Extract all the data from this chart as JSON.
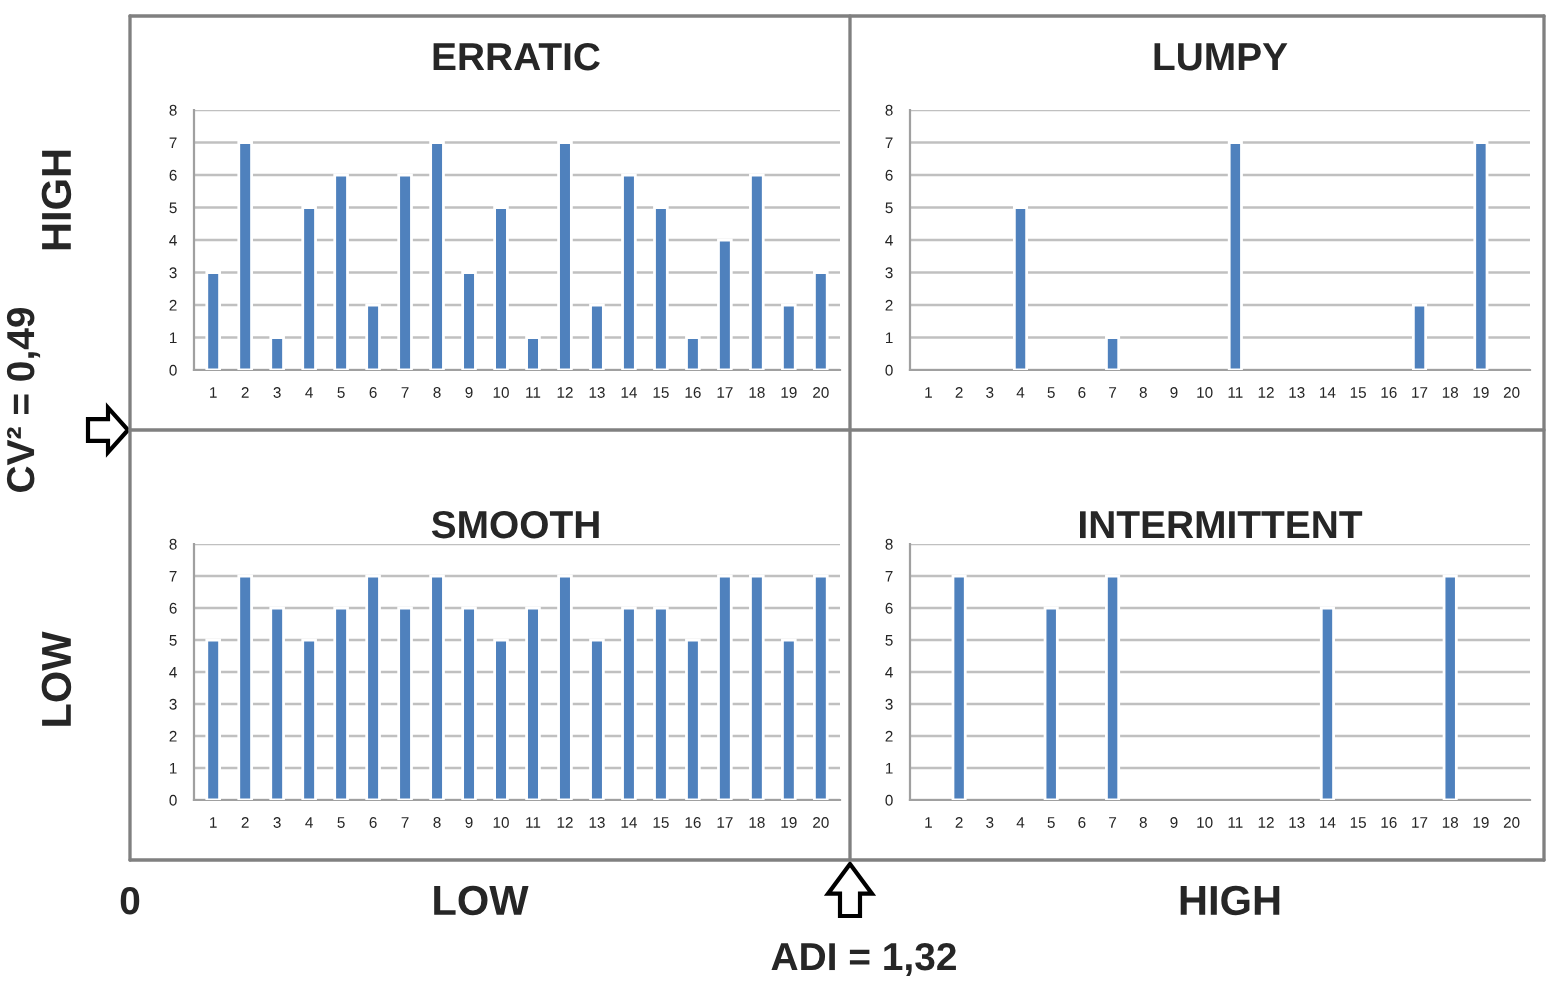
{
  "chart_data": [
    {
      "type": "bar",
      "title": "ERRATIC",
      "categories": [
        "1",
        "2",
        "3",
        "4",
        "5",
        "6",
        "7",
        "8",
        "9",
        "10",
        "11",
        "12",
        "13",
        "14",
        "15",
        "16",
        "17",
        "18",
        "19",
        "20"
      ],
      "color": "#4f81bd",
      "values": [
        3,
        7,
        1,
        5,
        6,
        2,
        6,
        7,
        3,
        5,
        1,
        7,
        2,
        6,
        5,
        1,
        4,
        6,
        2,
        3
      ],
      "ylim": [
        0,
        8
      ],
      "yticks": [
        0,
        1,
        2,
        3,
        4,
        5,
        6,
        7,
        8
      ],
      "grid": "y",
      "annotations": [
        "HIGH",
        "CV² = 0,49"
      ]
    },
    {
      "type": "bar",
      "title": "LUMPY",
      "categories": [
        "1",
        "2",
        "3",
        "4",
        "5",
        "6",
        "7",
        "8",
        "9",
        "10",
        "11",
        "12",
        "13",
        "14",
        "15",
        "16",
        "17",
        "18",
        "19",
        "20"
      ],
      "color": "#4f81bd",
      "values": [
        null,
        null,
        null,
        5,
        null,
        null,
        1,
        null,
        null,
        null,
        7,
        null,
        null,
        null,
        null,
        null,
        2,
        null,
        7,
        null
      ],
      "ylim": [
        0,
        8
      ],
      "yticks": [
        0,
        1,
        2,
        3,
        4,
        5,
        6,
        7,
        8
      ],
      "grid": "y"
    },
    {
      "type": "bar",
      "title": "SMOOTH",
      "categories": [
        "1",
        "2",
        "3",
        "4",
        "5",
        "6",
        "7",
        "8",
        "9",
        "10",
        "11",
        "12",
        "13",
        "14",
        "15",
        "16",
        "17",
        "18",
        "19",
        "20"
      ],
      "color": "#4f81bd",
      "values": [
        5,
        7,
        6,
        5,
        6,
        7,
        6,
        7,
        6,
        5,
        6,
        7,
        5,
        6,
        6,
        5,
        7,
        7,
        5,
        7
      ],
      "ylim": [
        0,
        8
      ],
      "yticks": [
        0,
        1,
        2,
        3,
        4,
        5,
        6,
        7,
        8
      ],
      "grid": "y",
      "annotations": [
        "LOW",
        "0",
        "LOW",
        "ADI = 1,32"
      ]
    },
    {
      "type": "bar",
      "title": "INTERMITTENT",
      "categories": [
        "1",
        "2",
        "3",
        "4",
        "5",
        "6",
        "7",
        "8",
        "9",
        "10",
        "11",
        "12",
        "13",
        "14",
        "15",
        "16",
        "17",
        "18",
        "19",
        "20"
      ],
      "color": "#4f81bd",
      "values": [
        null,
        7,
        null,
        null,
        6,
        null,
        7,
        null,
        null,
        null,
        null,
        null,
        null,
        6,
        null,
        null,
        null,
        7,
        null,
        null
      ],
      "ylim": [
        0,
        8
      ],
      "yticks": [
        0,
        1,
        2,
        3,
        4,
        5,
        6,
        7,
        8
      ],
      "grid": "y",
      "annotations": [
        "HIGH"
      ]
    }
  ]
}
